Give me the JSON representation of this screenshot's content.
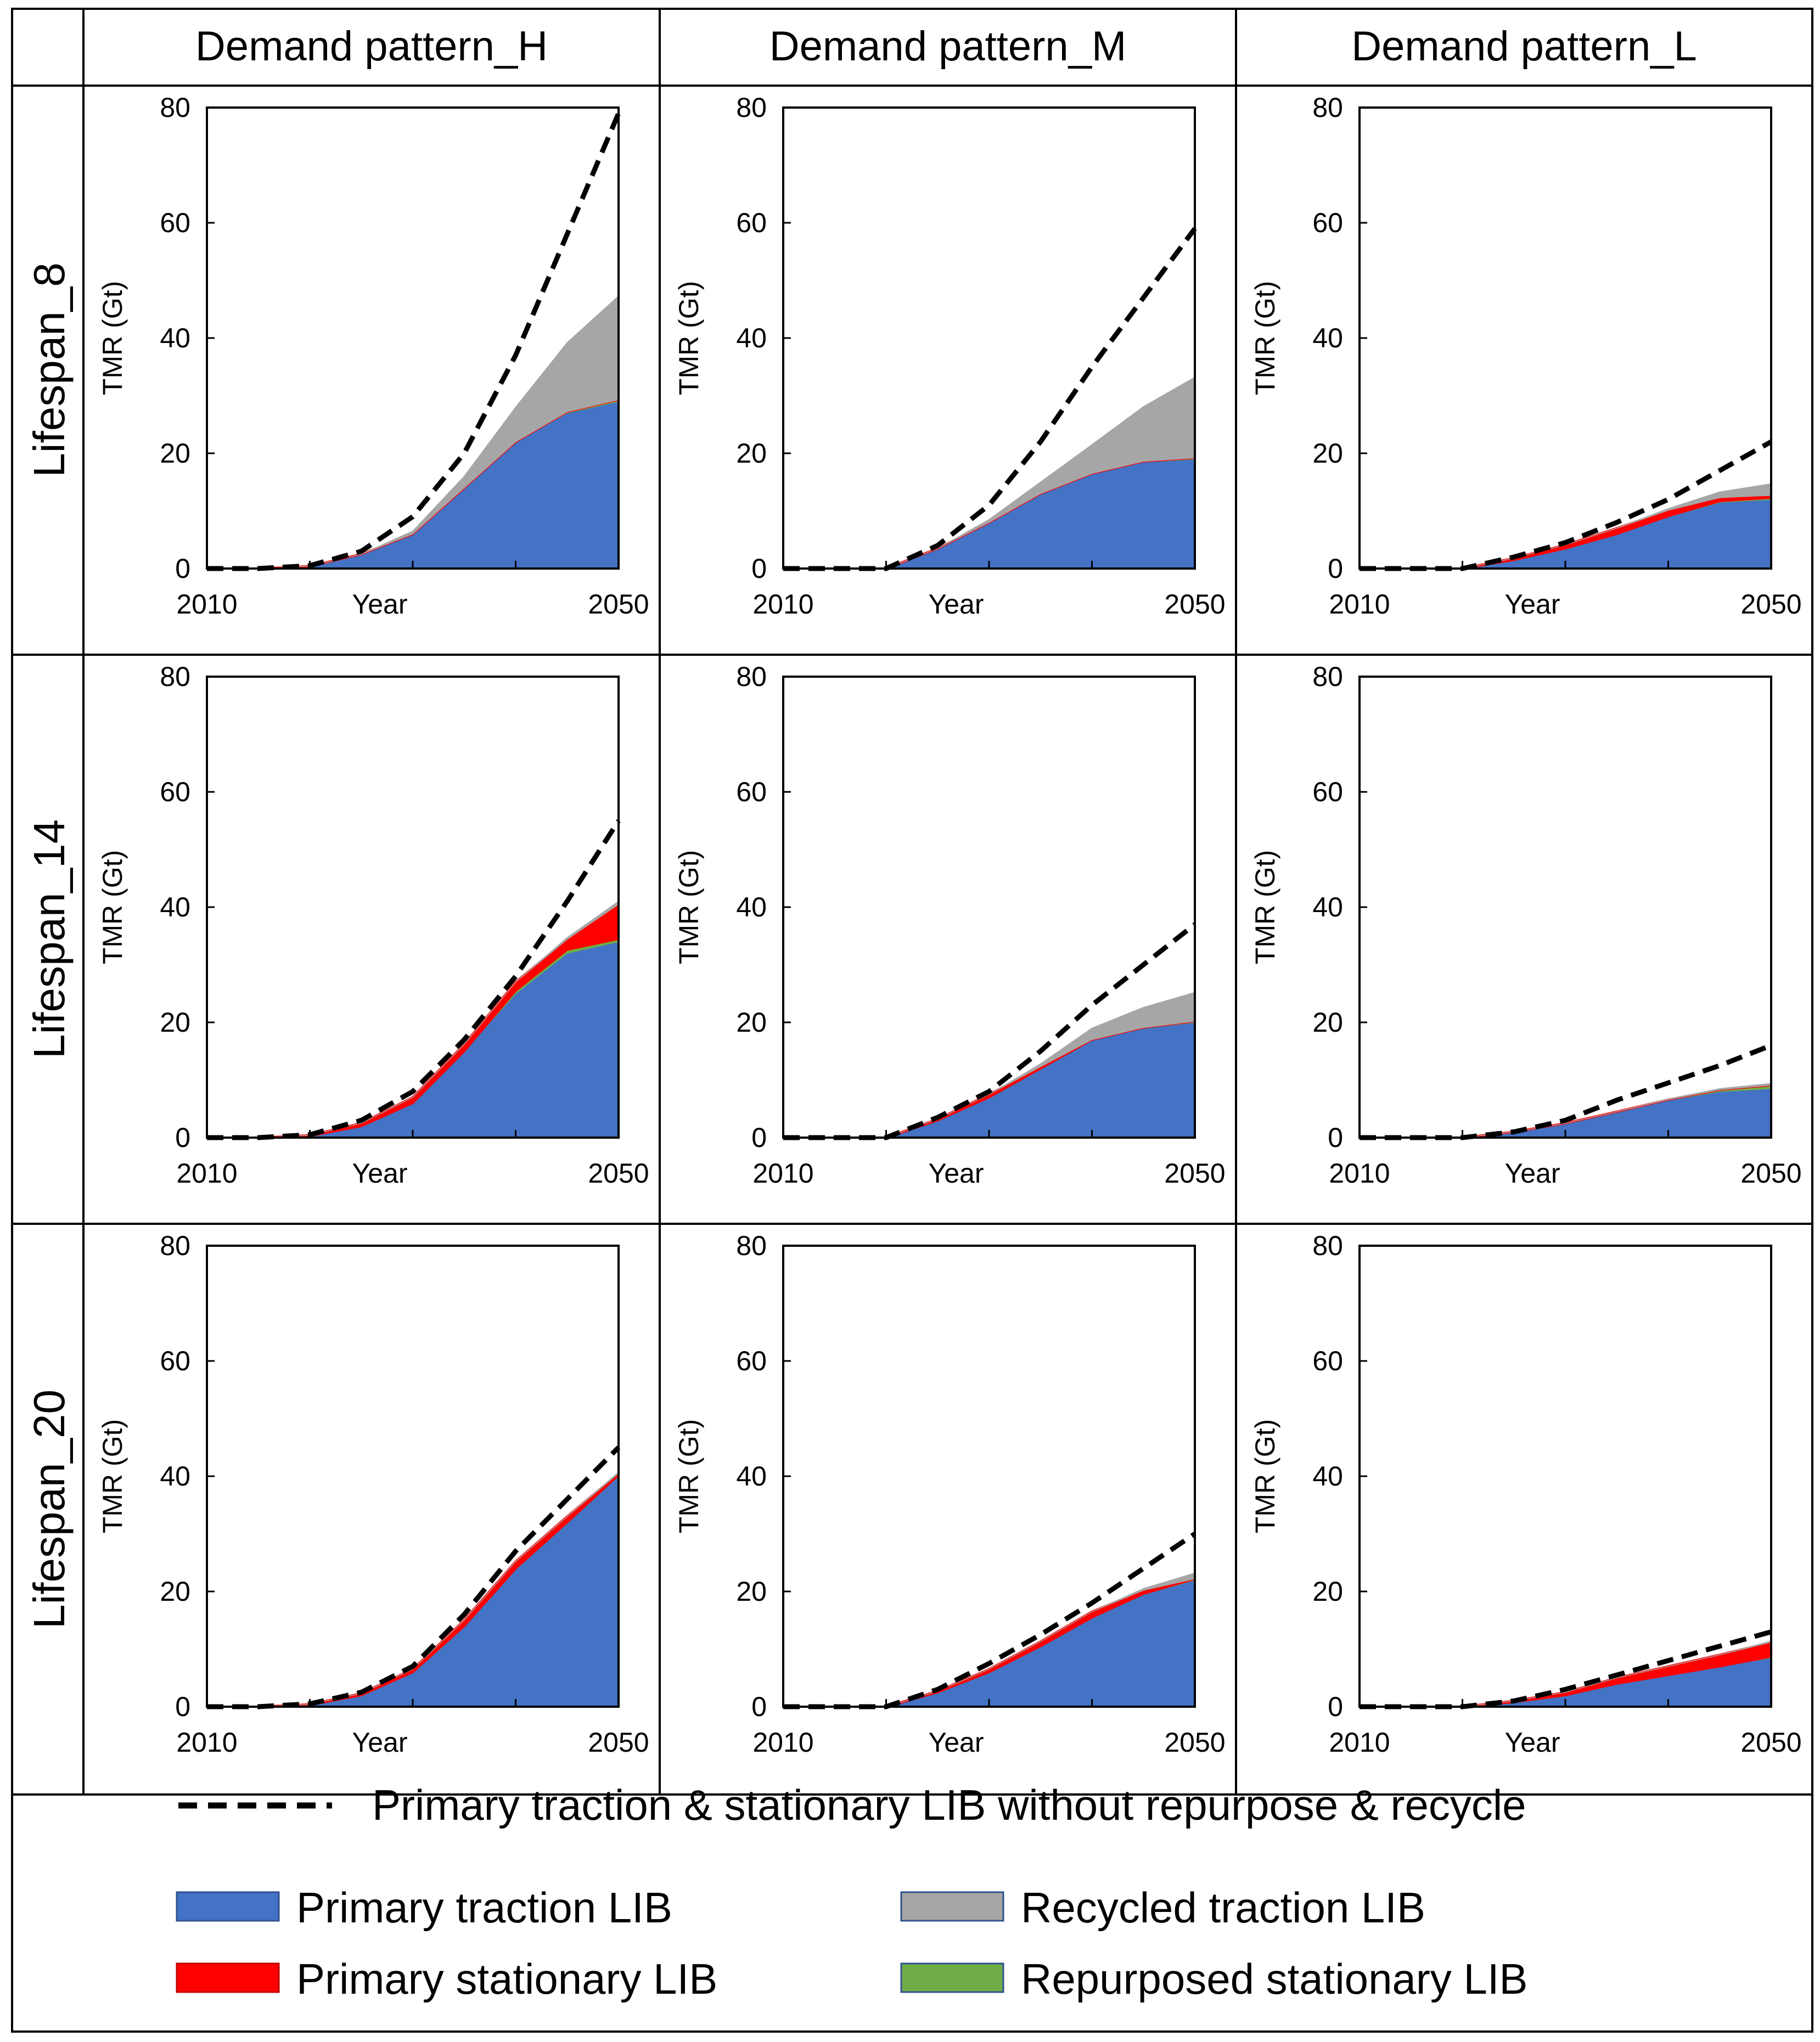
{
  "column_headers": [
    "Demand pattern_H",
    "Demand pattern_M",
    "Demand pattern_L"
  ],
  "row_headers": [
    "Lifespan_8",
    "Lifespan_14",
    "Lifespan_20"
  ],
  "legend": {
    "dashed": "Primary traction & stationary LIB without repurpose & recycle",
    "items": [
      {
        "label": "Primary traction LIB",
        "color": "#4472C4"
      },
      {
        "label": "Recycled traction LIB",
        "color": "#A6A6A6"
      },
      {
        "label": "Primary stationary LIB",
        "color": "#FF0000"
      },
      {
        "label": "Repurposed stationary LIB",
        "color": "#70AD47"
      }
    ]
  },
  "chart_data": [
    {
      "type": "area",
      "panel": "Lifespan_8 / Demand pattern_H",
      "xlabel": "Year",
      "ylabel": "TMR (Gt)",
      "xlim": [
        2010,
        2050
      ],
      "ylim": [
        0,
        80
      ],
      "yticks": [
        0,
        20,
        40,
        60,
        80
      ],
      "xticklabels": [
        "2010",
        "2050"
      ],
      "x": [
        2010,
        2015,
        2020,
        2025,
        2030,
        2035,
        2040,
        2045,
        2050
      ],
      "series": [
        {
          "name": "Primary traction LIB",
          "values": [
            0,
            0,
            0.4,
            2.5,
            6,
            14,
            22,
            27,
            29
          ]
        },
        {
          "name": "Repurposed stationary LIB",
          "values": [
            0,
            0,
            0,
            0,
            0,
            0,
            0,
            0.2,
            0.3
          ]
        },
        {
          "name": "Primary stationary LIB",
          "values": [
            0,
            0,
            0,
            0,
            0,
            0,
            0,
            0,
            0
          ]
        },
        {
          "name": "Recycled traction LIB",
          "values": [
            0,
            0,
            0,
            0,
            0.5,
            2,
            6,
            12,
            18
          ]
        }
      ],
      "dashed": {
        "name": "Primary traction & stationary LIB without repurpose & recycle",
        "values": [
          0,
          0,
          0.5,
          3,
          9,
          20,
          37,
          58,
          79
        ]
      }
    },
    {
      "type": "area",
      "panel": "Lifespan_8 / Demand pattern_M",
      "xlabel": "Year",
      "ylabel": "TMR (Gt)",
      "xlim": [
        2010,
        2050
      ],
      "ylim": [
        0,
        80
      ],
      "yticks": [
        0,
        20,
        40,
        60,
        80
      ],
      "xticklabels": [
        "2010",
        "2050"
      ],
      "x": [
        2010,
        2015,
        2020,
        2025,
        2030,
        2035,
        2040,
        2045,
        2050
      ],
      "series": [
        {
          "name": "Primary traction LIB",
          "values": [
            0,
            0,
            0,
            3.5,
            8,
            13,
            16.5,
            18.5,
            19
          ]
        },
        {
          "name": "Repurposed stationary LIB",
          "values": [
            0,
            0,
            0,
            0,
            0,
            0,
            0,
            0.1,
            0.2
          ]
        },
        {
          "name": "Primary stationary LIB",
          "values": [
            0,
            0,
            0,
            0,
            0,
            0,
            0,
            0,
            0
          ]
        },
        {
          "name": "Recycled traction LIB",
          "values": [
            0,
            0,
            0,
            0,
            0.5,
            2,
            5,
            9.5,
            14
          ]
        }
      ],
      "dashed": {
        "name": "Primary traction & stationary LIB without repurpose & recycle",
        "values": [
          0,
          0,
          0,
          4,
          11,
          22,
          35,
          47,
          59
        ]
      }
    },
    {
      "type": "area",
      "panel": "Lifespan_8 / Demand pattern_L",
      "xlabel": "Year",
      "ylabel": "TMR (Gt)",
      "xlim": [
        2010,
        2050
      ],
      "ylim": [
        0,
        80
      ],
      "yticks": [
        0,
        20,
        40,
        60,
        80
      ],
      "xticklabels": [
        "2010",
        "2050"
      ],
      "x": [
        2010,
        2015,
        2020,
        2025,
        2030,
        2035,
        2040,
        2045,
        2050
      ],
      "series": [
        {
          "name": "Primary traction LIB",
          "values": [
            0,
            0,
            0,
            1.5,
            3.5,
            6,
            9,
            11.5,
            12
          ]
        },
        {
          "name": "Repurposed stationary LIB",
          "values": [
            0,
            0,
            0,
            0,
            0,
            0,
            0.1,
            0.2,
            0.3
          ]
        },
        {
          "name": "Primary stationary LIB",
          "values": [
            0,
            0,
            0,
            0.3,
            0.6,
            1,
            1,
            0.6,
            0.4
          ]
        },
        {
          "name": "Recycled traction LIB",
          "values": [
            0,
            0,
            0,
            0,
            0,
            0,
            0.3,
            1,
            2
          ]
        }
      ],
      "dashed": {
        "name": "Primary traction & stationary LIB without repurpose & recycle",
        "values": [
          0,
          0,
          0,
          2,
          4.5,
          8,
          12,
          17,
          22
        ]
      }
    },
    {
      "type": "area",
      "panel": "Lifespan_14 / Demand pattern_H",
      "xlabel": "Year",
      "ylabel": "TMR (Gt)",
      "xlim": [
        2010,
        2050
      ],
      "ylim": [
        0,
        80
      ],
      "yticks": [
        0,
        20,
        40,
        60,
        80
      ],
      "xticklabels": [
        "2010",
        "2050"
      ],
      "x": [
        2010,
        2015,
        2020,
        2025,
        2030,
        2035,
        2040,
        2045,
        2050
      ],
      "series": [
        {
          "name": "Primary traction LIB",
          "values": [
            0,
            0,
            0.3,
            2,
            6,
            15,
            25,
            32,
            34
          ]
        },
        {
          "name": "Repurposed stationary LIB",
          "values": [
            0,
            0,
            0,
            0,
            0,
            0,
            0.5,
            0.6,
            0.5
          ]
        },
        {
          "name": "Primary stationary LIB",
          "values": [
            0,
            0,
            0.1,
            0.5,
            1,
            1.2,
            1.5,
            1.8,
            6
          ]
        },
        {
          "name": "Recycled traction LIB",
          "values": [
            0,
            0,
            0,
            0,
            0,
            0,
            0,
            0.3,
            0.5
          ]
        }
      ],
      "dashed": {
        "name": "Primary traction & stationary LIB without repurpose & recycle",
        "values": [
          0,
          0,
          0.5,
          3,
          8,
          17,
          28,
          41,
          55
        ]
      }
    },
    {
      "type": "area",
      "panel": "Lifespan_14 / Demand pattern_M",
      "xlabel": "Year",
      "ylabel": "TMR (Gt)",
      "xlim": [
        2010,
        2050
      ],
      "ylim": [
        0,
        80
      ],
      "yticks": [
        0,
        20,
        40,
        60,
        80
      ],
      "xticklabels": [
        "2010",
        "2050"
      ],
      "x": [
        2010,
        2015,
        2020,
        2025,
        2030,
        2035,
        2040,
        2045,
        2050
      ],
      "series": [
        {
          "name": "Primary traction LIB",
          "values": [
            0,
            0,
            0,
            3,
            7,
            12,
            17,
            19,
            20
          ]
        },
        {
          "name": "Repurposed stationary LIB",
          "values": [
            0,
            0,
            0,
            0,
            0,
            0,
            0,
            0.1,
            0.2
          ]
        },
        {
          "name": "Primary stationary LIB",
          "values": [
            0,
            0,
            0,
            0.2,
            0.5,
            0.3,
            0,
            0,
            0
          ]
        },
        {
          "name": "Recycled traction LIB",
          "values": [
            0,
            0,
            0,
            0,
            0,
            0.5,
            2,
            3.5,
            5
          ]
        }
      ],
      "dashed": {
        "name": "Primary traction & stationary LIB without repurpose & recycle",
        "values": [
          0,
          0,
          0,
          3.5,
          8,
          15,
          23,
          30,
          37
        ]
      }
    },
    {
      "type": "area",
      "panel": "Lifespan_14 / Demand pattern_L",
      "xlabel": "Year",
      "ylabel": "TMR (Gt)",
      "xlim": [
        2010,
        2050
      ],
      "ylim": [
        0,
        80
      ],
      "yticks": [
        0,
        20,
        40,
        60,
        80
      ],
      "xticklabels": [
        "2010",
        "2050"
      ],
      "x": [
        2010,
        2015,
        2020,
        2025,
        2030,
        2035,
        2040,
        2045,
        2050
      ],
      "series": [
        {
          "name": "Primary traction LIB",
          "values": [
            0,
            0,
            0,
            1,
            2.5,
            4.5,
            6.5,
            8,
            8.5
          ]
        },
        {
          "name": "Repurposed stationary LIB",
          "values": [
            0,
            0,
            0,
            0,
            0,
            0,
            0.1,
            0.3,
            0.6
          ]
        },
        {
          "name": "Primary stationary LIB",
          "values": [
            0,
            0,
            0,
            0,
            0,
            0,
            0,
            0,
            0
          ]
        },
        {
          "name": "Recycled traction LIB",
          "values": [
            0,
            0,
            0,
            0,
            0,
            0,
            0.1,
            0.2,
            0.3
          ]
        }
      ],
      "dashed": {
        "name": "Primary traction & stationary LIB without repurpose & recycle",
        "values": [
          0,
          0,
          0,
          1,
          3,
          6.5,
          9.5,
          12.5,
          16
        ]
      }
    },
    {
      "type": "area",
      "panel": "Lifespan_20 / Demand pattern_H",
      "xlabel": "Year",
      "ylabel": "TMR (Gt)",
      "xlim": [
        2010,
        2050
      ],
      "ylim": [
        0,
        80
      ],
      "yticks": [
        0,
        20,
        40,
        60,
        80
      ],
      "xticklabels": [
        "2010",
        "2050"
      ],
      "x": [
        2010,
        2015,
        2020,
        2025,
        2030,
        2035,
        2040,
        2045,
        2050
      ],
      "series": [
        {
          "name": "Primary traction LIB",
          "values": [
            0,
            0,
            0.3,
            2,
            6,
            14,
            24,
            32,
            40
          ]
        },
        {
          "name": "Repurposed stationary LIB",
          "values": [
            0,
            0,
            0,
            0,
            0,
            0,
            0,
            0,
            0.2
          ]
        },
        {
          "name": "Primary stationary LIB",
          "values": [
            0,
            0,
            0.1,
            0.3,
            0.5,
            1,
            1.2,
            1,
            0.3
          ]
        },
        {
          "name": "Recycled traction LIB",
          "values": [
            0,
            0,
            0,
            0,
            0,
            0,
            0,
            0,
            0.2
          ]
        }
      ],
      "dashed": {
        "name": "Primary traction & stationary LIB without repurpose & recycle",
        "values": [
          0,
          0,
          0.5,
          2.5,
          7,
          16,
          27,
          36,
          45
        ]
      }
    },
    {
      "type": "area",
      "panel": "Lifespan_20 / Demand pattern_M",
      "xlabel": "Year",
      "ylabel": "TMR (Gt)",
      "xlim": [
        2010,
        2050
      ],
      "ylim": [
        0,
        80
      ],
      "yticks": [
        0,
        20,
        40,
        60,
        80
      ],
      "xticklabels": [
        "2010",
        "2050"
      ],
      "x": [
        2010,
        2015,
        2020,
        2025,
        2030,
        2035,
        2040,
        2045,
        2050
      ],
      "series": [
        {
          "name": "Primary traction LIB",
          "values": [
            0,
            0,
            0,
            2.5,
            6,
            10.5,
            15.5,
            19.5,
            22
          ]
        },
        {
          "name": "Repurposed stationary LIB",
          "values": [
            0,
            0,
            0,
            0,
            0,
            0,
            0,
            0.1,
            0.2
          ]
        },
        {
          "name": "Primary stationary LIB",
          "values": [
            0,
            0,
            0,
            0.2,
            0.5,
            0.8,
            1,
            0.6,
            0
          ]
        },
        {
          "name": "Recycled traction LIB",
          "values": [
            0,
            0,
            0,
            0,
            0,
            0,
            0,
            0.3,
            1
          ]
        }
      ],
      "dashed": {
        "name": "Primary traction & stationary LIB without repurpose & recycle",
        "values": [
          0,
          0,
          0,
          3,
          7.5,
          12.5,
          18,
          24,
          30
        ]
      }
    },
    {
      "type": "area",
      "panel": "Lifespan_20 / Demand pattern_L",
      "xlabel": "Year",
      "ylabel": "TMR (Gt)",
      "xlim": [
        2010,
        2050
      ],
      "ylim": [
        0,
        80
      ],
      "yticks": [
        0,
        20,
        40,
        60,
        80
      ],
      "xticklabels": [
        "2010",
        "2050"
      ],
      "x": [
        2010,
        2015,
        2020,
        2025,
        2030,
        2035,
        2040,
        2045,
        2050
      ],
      "series": [
        {
          "name": "Primary traction LIB",
          "values": [
            0,
            0,
            0,
            0.8,
            2,
            4,
            5.5,
            7,
            8.5
          ]
        },
        {
          "name": "Repurposed stationary LIB",
          "values": [
            0,
            0,
            0,
            0,
            0,
            0,
            0,
            0,
            0.2
          ]
        },
        {
          "name": "Primary stationary LIB",
          "values": [
            0,
            0,
            0,
            0.2,
            0.5,
            1,
            1.5,
            2,
            2.5
          ]
        },
        {
          "name": "Recycled traction LIB",
          "values": [
            0,
            0,
            0,
            0,
            0,
            0,
            0,
            0,
            0.2
          ]
        }
      ],
      "dashed": {
        "name": "Primary traction & stationary LIB without repurpose & recycle",
        "values": [
          0,
          0,
          0,
          1,
          3,
          5.5,
          8,
          10.5,
          13
        ]
      }
    }
  ]
}
